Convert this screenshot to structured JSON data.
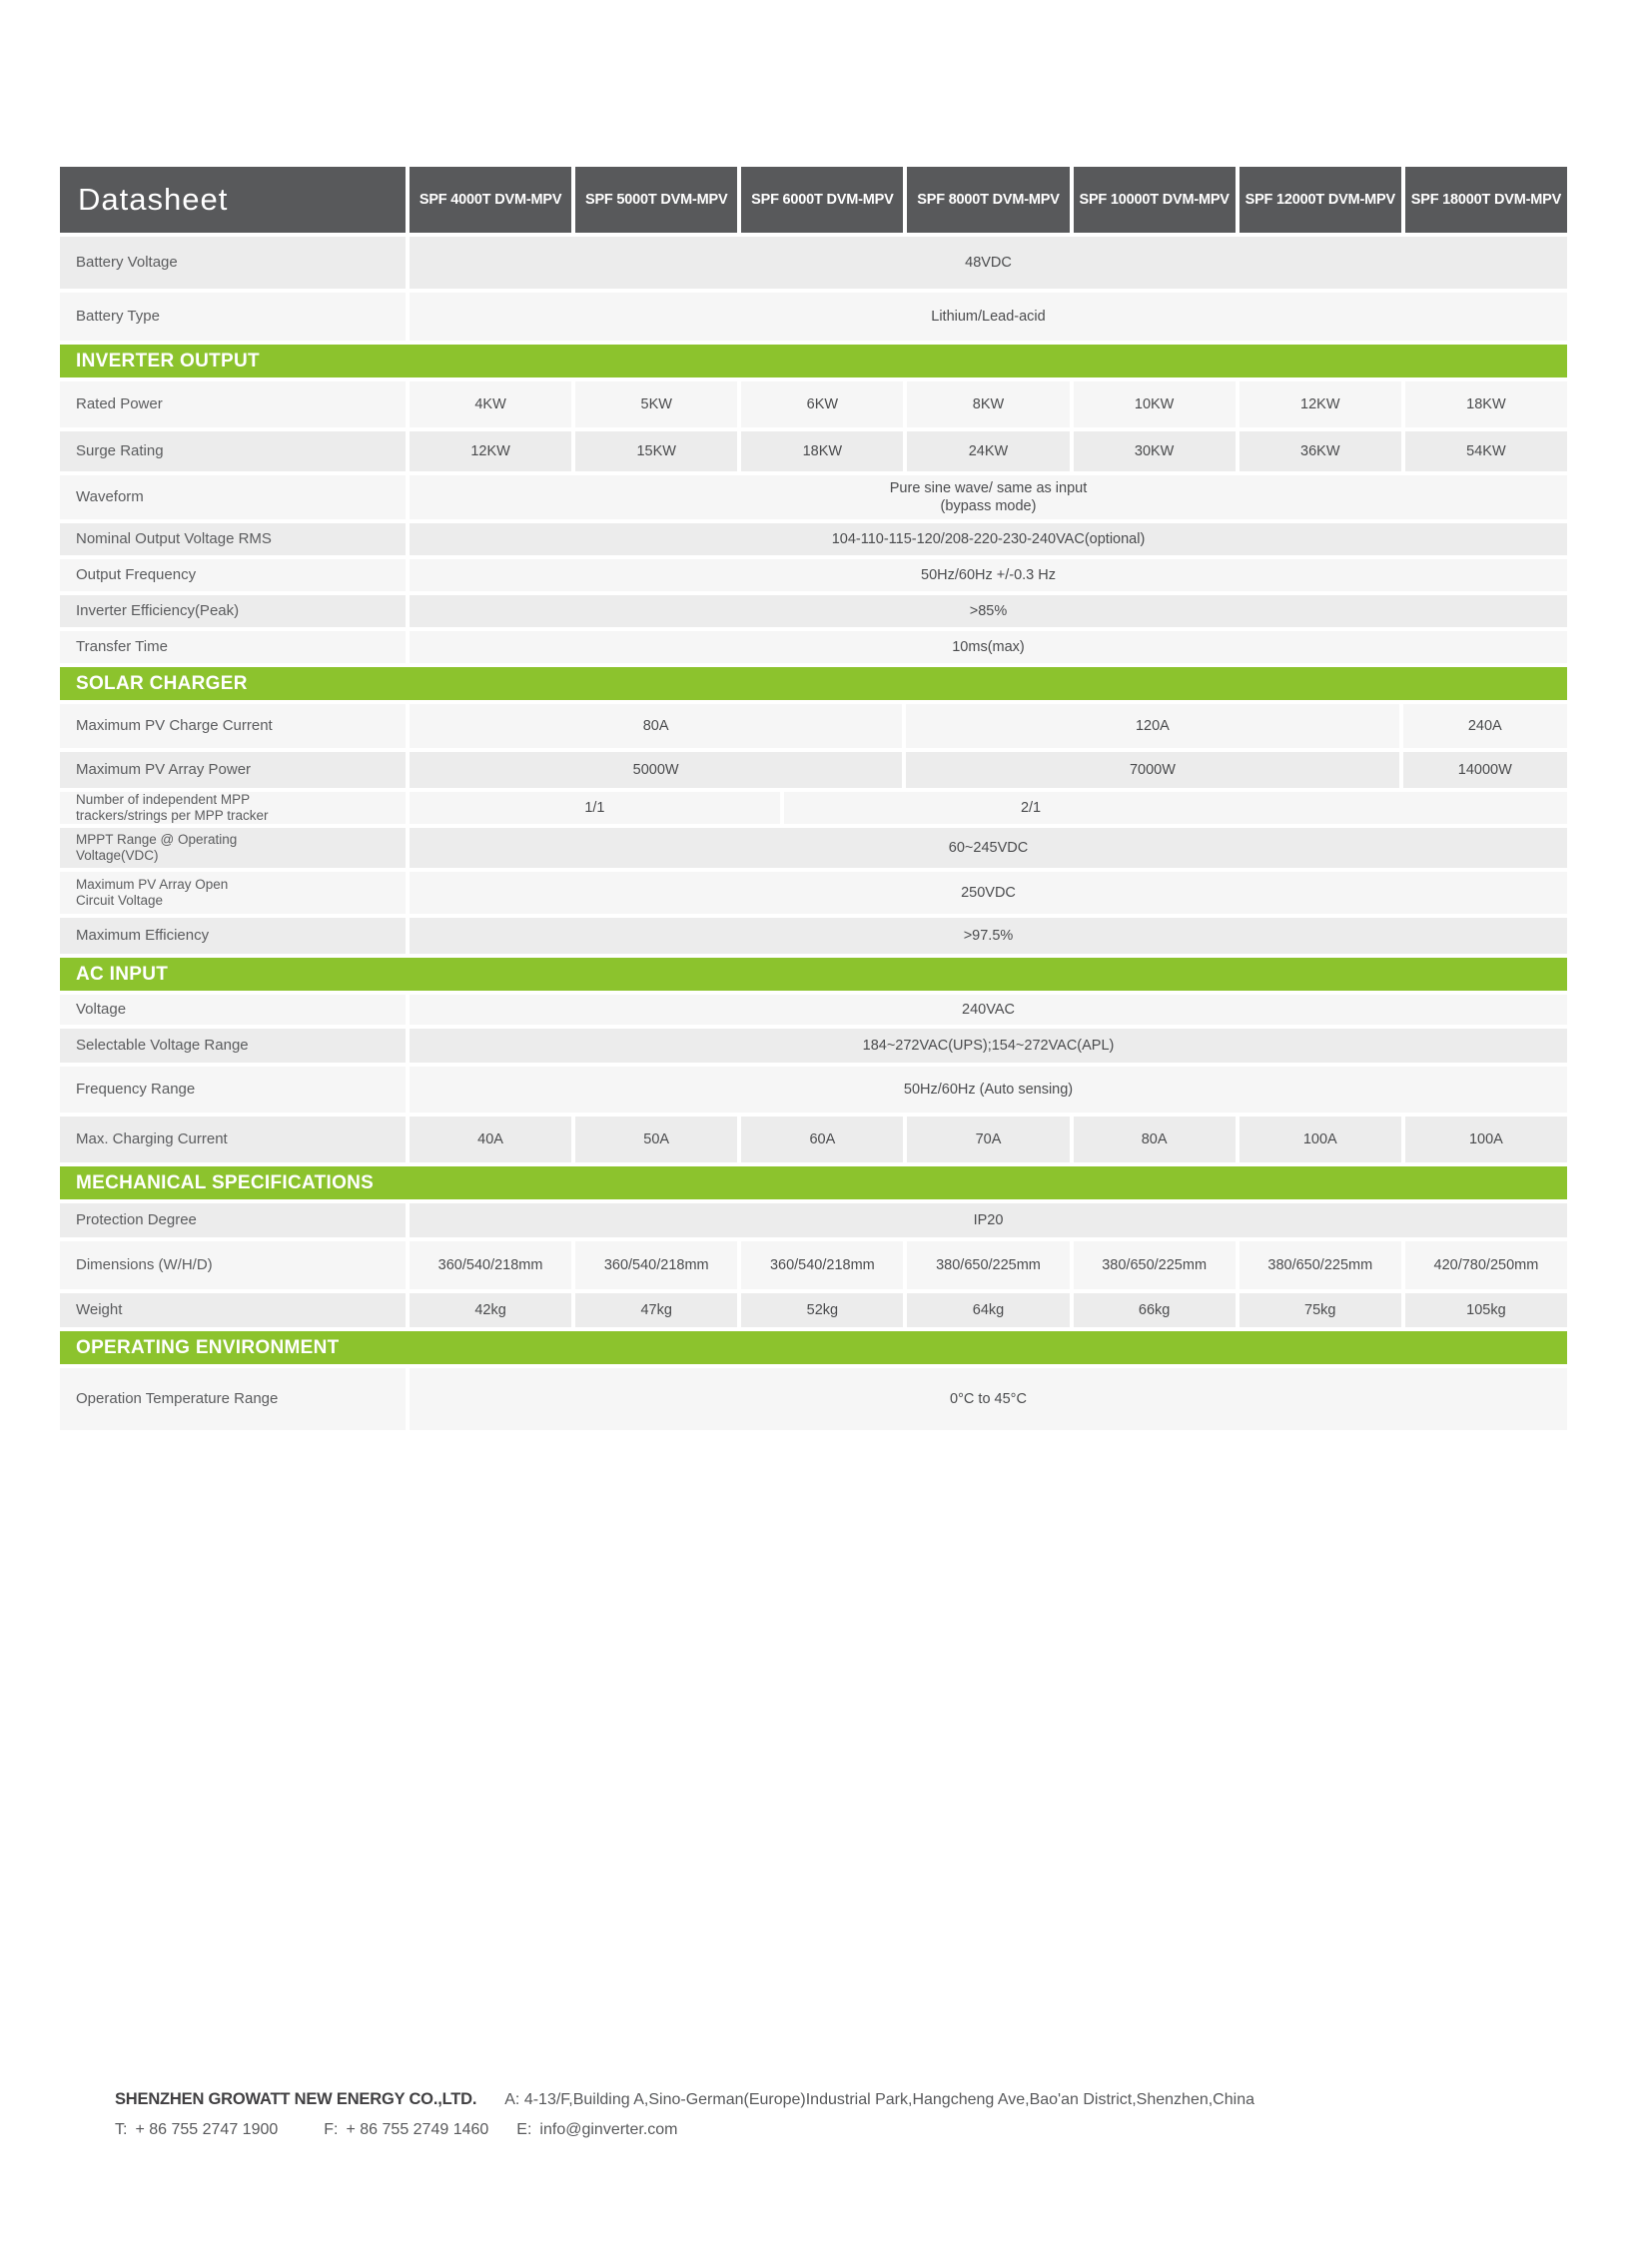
{
  "colors": {
    "accent_green": "#8CC32D",
    "header_dark_gray": "#58595B",
    "row_dark": "#ECECEC",
    "row_light": "#F6F6F6"
  },
  "table": {
    "corner_label": "Datasheet",
    "products": [
      "SPF 4000T DVM-MPV",
      "SPF 5000T DVM-MPV",
      "SPF 6000T DVM-MPV",
      "SPF 8000T DVM-MPV",
      "SPF 10000T DVM-MPV",
      "SPF 12000T DVM-MPV",
      "SPF 18000T DVM-MPV"
    ],
    "sections": {
      "inverter_output": "INVERTER OUTPUT",
      "solar_charger": "SOLAR CHARGER",
      "ac_input": "AC INPUT",
      "mechanical": "MECHANICAL SPECIFICATIONS",
      "operating": "OPERATING ENVIRONMENT"
    },
    "rows": {
      "battery_voltage": {
        "label": "Battery Voltage",
        "value": "48VDC"
      },
      "battery_type": {
        "label": "Battery Type",
        "value": "Lithium/Lead-acid"
      },
      "rated_power": {
        "label": "Rated Power",
        "values": [
          "4KW",
          "5KW",
          "6KW",
          "8KW",
          "10KW",
          "12KW",
          "18KW"
        ]
      },
      "surge_rating": {
        "label": "Surge Rating",
        "values": [
          "12KW",
          "15KW",
          "18KW",
          "24KW",
          "30KW",
          "36KW",
          "54KW"
        ]
      },
      "waveform": {
        "label": "Waveform",
        "value_line1": "Pure sine wave/ same as input",
        "value_line2": "(bypass mode)"
      },
      "nominal_output_voltage": {
        "label": "Nominal Output Voltage RMS",
        "value": "104-110-115-120/208-220-230-240VAC(optional)"
      },
      "output_frequency": {
        "label": "Output Frequency",
        "value": "50Hz/60Hz +/-0.3 Hz"
      },
      "inverter_efficiency": {
        "label": "Inverter Efficiency(Peak)",
        "value": ">85%"
      },
      "transfer_time": {
        "label": "Transfer Time",
        "value": "10ms(max)"
      },
      "max_pv_charge_current": {
        "label": "Maximum PV Charge Current",
        "values": [
          "80A",
          "120A",
          "240A"
        ]
      },
      "max_pv_array_power": {
        "label": "Maximum PV Array Power",
        "values": [
          "5000W",
          "7000W",
          "14000W"
        ]
      },
      "mpp_trackers": {
        "label_line1": "Number of independent MPP",
        "label_line2": "trackers/strings per MPP tracker",
        "values": [
          "1/1",
          "2/1"
        ]
      },
      "mppt_range": {
        "label_line1": "MPPT Range @ Operating",
        "label_line2": "Voltage(VDC)",
        "value": "60~245VDC"
      },
      "max_pv_open_circuit": {
        "label_line1": "Maximum PV Array Open",
        "label_line2": "Circuit Voltage",
        "value": "250VDC"
      },
      "max_efficiency": {
        "label": "Maximum Efficiency",
        "value": ">97.5%"
      },
      "voltage": {
        "label": "Voltage",
        "value": "240VAC"
      },
      "selectable_voltage_range": {
        "label": "Selectable Voltage Range",
        "value": "184~272VAC(UPS);154~272VAC(APL)"
      },
      "frequency_range": {
        "label": "Frequency Range",
        "value": "50Hz/60Hz (Auto sensing)"
      },
      "max_charging_current": {
        "label": "Max. Charging Current",
        "values": [
          "40A",
          "50A",
          "60A",
          "70A",
          "80A",
          "100A",
          "100A"
        ]
      },
      "protection_degree": {
        "label": "Protection Degree",
        "value": "IP20"
      },
      "dimensions": {
        "label": "Dimensions (W/H/D)",
        "values": [
          "360/540/218mm",
          "360/540/218mm",
          "360/540/218mm",
          "380/650/225mm",
          "380/650/225mm",
          "380/650/225mm",
          "420/780/250mm"
        ]
      },
      "weight": {
        "label": "Weight",
        "values": [
          "42kg",
          "47kg",
          "52kg",
          "64kg",
          "66kg",
          "75kg",
          "105kg"
        ]
      },
      "operation_temperature": {
        "label": "Operation Temperature Range",
        "value": "0°C to 45°C"
      }
    }
  },
  "footer": {
    "company": "SHENZHEN GROWATT NEW ENERGY CO.,LTD.",
    "address_label": "A:",
    "address": "4-13/F,Building A,Sino-German(Europe)Industrial Park,Hangcheng Ave,Bao'an District,Shenzhen,China",
    "phone_label": "T:",
    "phone": "+ 86 755 2747 1900",
    "fax_label": "F:",
    "fax": "+ 86 755 2749 1460",
    "email_label": "E:",
    "email": "info@ginverter.com"
  }
}
